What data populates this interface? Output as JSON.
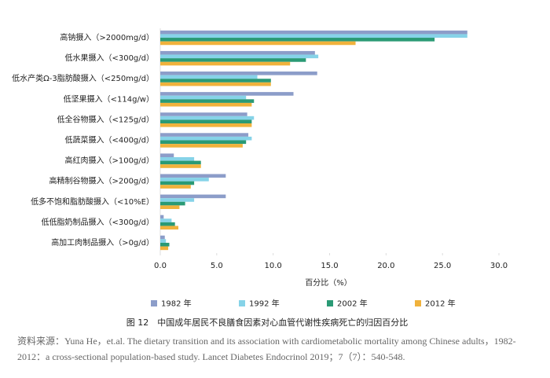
{
  "chart_data": {
    "type": "bar",
    "orientation": "horizontal",
    "categories": [
      "高钠摄入（>2000mg/d）",
      "低水果摄入（<300g/d）",
      "低水产类Ω-3脂肪酸摄入（<250mg/d）",
      "低坚果摄入（<114g/w）",
      "低全谷物摄入（<125g/d）",
      "低蔬菜摄入（<400g/d）",
      "高红肉摄入（>100g/d）",
      "高精制谷物摄入（>200g/d）",
      "低多不饱和脂肪酸摄入（<10%E）",
      "低低脂奶制品摄入（<300g/d）",
      "高加工肉制品摄入（>0g/d）"
    ],
    "series": [
      {
        "name": "1982 年",
        "color": "#8c9dc9",
        "values": [
          27.2,
          13.7,
          13.9,
          11.8,
          7.7,
          7.8,
          1.2,
          5.8,
          5.8,
          0.3,
          0.4
        ]
      },
      {
        "name": "1992 年",
        "color": "#86d3e8",
        "values": [
          27.2,
          14.0,
          8.6,
          7.6,
          8.3,
          8.1,
          3.0,
          4.3,
          3.0,
          1.0,
          0.5
        ]
      },
      {
        "name": "2002 年",
        "color": "#2a9a75",
        "values": [
          24.3,
          12.9,
          9.8,
          8.3,
          8.1,
          7.6,
          3.6,
          3.0,
          2.2,
          1.3,
          0.8
        ]
      },
      {
        "name": "2012 年",
        "color": "#f0b23c",
        "values": [
          17.3,
          11.5,
          9.8,
          8.1,
          8.1,
          7.3,
          3.6,
          2.7,
          1.7,
          1.6,
          0.7
        ]
      }
    ],
    "xlim": [
      0,
      30
    ],
    "xticks": [
      {
        "value": 0,
        "label": "0.0"
      },
      {
        "value": 5,
        "label": "5.0"
      },
      {
        "value": 10,
        "label": "10.0"
      },
      {
        "value": 15,
        "label": "15.0"
      },
      {
        "value": 20,
        "label": "20.0"
      },
      {
        "value": 25,
        "label": "25.0"
      },
      {
        "value": 30,
        "label": "30.0"
      }
    ],
    "x_label": "百分比（%）",
    "grid": false,
    "legend": "bottom",
    "caption": "图 12　中国成年居民不良膳食因素对心血管代谢性疾病死亡的归因百分比",
    "source": "资料来源：Yuna He，et.al. The dietary transition and its association with cardiometabolic mortality among Chinese adults，1982-2012：a cross-sectional population-based study. Lancet Diabetes Endocrinol 2019；7（7）：540-548."
  }
}
